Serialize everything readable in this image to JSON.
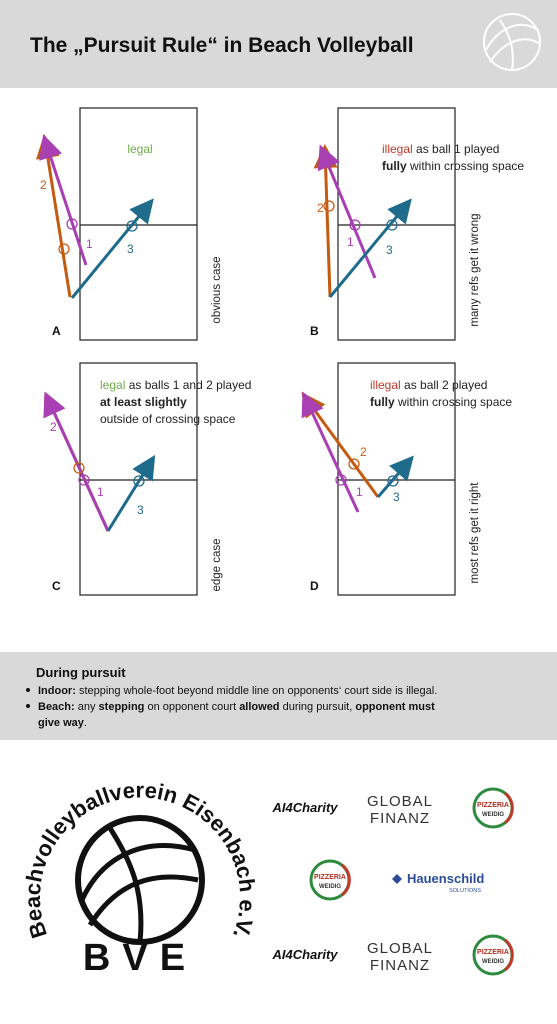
{
  "header": {
    "title": "The „Pursuit Rule“ in Beach Volleyball"
  },
  "panels": [
    {
      "label": "A",
      "verdict": [
        [
          "legal"
        ]
      ],
      "note": "obvious case",
      "balls": [
        "1",
        "2",
        "3"
      ]
    },
    {
      "label": "B",
      "verdict": [
        [
          "illegal",
          " as ball 1 played"
        ],
        [
          "fully",
          " within crossing space"
        ]
      ],
      "note": "many refs get it wrong",
      "balls": [
        "1",
        "2",
        "3"
      ]
    },
    {
      "label": "C",
      "verdict": [
        [
          "legal",
          " as balls 1 and 2 played"
        ],
        [
          "at least slightly"
        ],
        [
          "outside of crossing space"
        ]
      ],
      "note": "edge case",
      "balls": [
        "1",
        "2",
        "3"
      ]
    },
    {
      "label": "D",
      "verdict": [
        [
          "illegal",
          " as ball 2 played"
        ],
        [
          "fully",
          " within crossing space"
        ]
      ],
      "note": "most refs get it right",
      "balls": [
        "1",
        "2",
        "3"
      ]
    }
  ],
  "pursuit": {
    "title": "During pursuit",
    "bullets": [
      {
        "lines": [
          [
            "Indoor:",
            " stepping whole-foot beyond middle line on opponents‘ court side is illegal."
          ]
        ]
      },
      {
        "lines": [
          [
            "Beach:",
            " any ",
            "stepping",
            " on opponent court ",
            "allowed",
            " during pursuit, ",
            "opponent must"
          ],
          [
            "give way",
            "."
          ]
        ]
      }
    ]
  },
  "club": {
    "name": "Beachvolleyballverein Eisenbach e.V.",
    "short": "BVE"
  },
  "sponsors": [
    {
      "lines": [
        "AI4Charity"
      ]
    },
    {
      "lines": [
        "GLOBAL",
        "FINANZ"
      ]
    },
    {
      "lines": [
        "PIZZERIA",
        "WEIDIG"
      ]
    },
    {
      "lines": [
        "PIZZERIA",
        "WEIDIG"
      ]
    },
    {
      "lines": [
        "Hauenschild",
        "SOLUTIONS"
      ]
    },
    {
      "lines": [
        "AI4Charity"
      ]
    },
    {
      "lines": [
        "GLOBAL",
        "FINANZ"
      ]
    },
    {
      "lines": [
        "PIZZERIA",
        "WEIDIG"
      ]
    }
  ]
}
